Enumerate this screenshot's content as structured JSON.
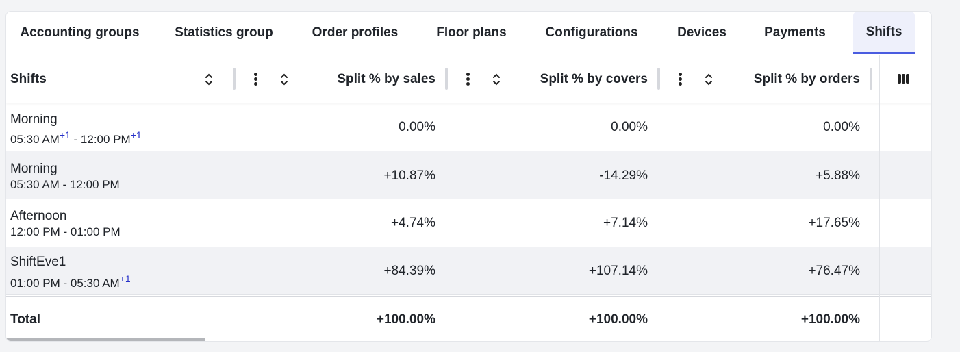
{
  "tabs": [
    {
      "label": "Accounting groups"
    },
    {
      "label": "Statistics group"
    },
    {
      "label": "Order profiles"
    },
    {
      "label": "Floor plans"
    },
    {
      "label": "Configurations"
    },
    {
      "label": "Devices"
    },
    {
      "label": "Payments"
    },
    {
      "label": "Shifts",
      "active": true
    }
  ],
  "table": {
    "headers": {
      "shifts": "Shifts",
      "sales": "Split % by sales",
      "covers": "Split % by covers",
      "orders": "Split % by orders"
    },
    "plus_marker": "+1",
    "rows": [
      {
        "name": "Morning",
        "start": "05:30 AM",
        "end": "12:00 PM",
        "start_plus": "+1",
        "end_plus": "+1",
        "sales": "0.00%",
        "covers": "0.00%",
        "orders": "0.00%"
      },
      {
        "name": "Morning",
        "time": "05:30 AM - 12:00 PM",
        "sales": "+10.87%",
        "covers": "-14.29%",
        "orders": "+5.88%"
      },
      {
        "name": "Afternoon",
        "time": "12:00 PM - 01:00 PM",
        "sales": "+4.74%",
        "covers": "+7.14%",
        "orders": "+17.65%"
      },
      {
        "name": "ShiftEve1",
        "time": "01:00 PM - 05:30 AM",
        "time_plus": "+1",
        "sales": "+84.39%",
        "covers": "+107.14%",
        "orders": "+76.47%"
      }
    ],
    "total": {
      "label": "Total",
      "sales": "+100.00%",
      "covers": "+100.00%",
      "orders": "+100.00%"
    }
  },
  "colors": {
    "accent": "#4a5ce0",
    "plus_marker": "#2631c9",
    "alt_row": "#f1f2f5"
  },
  "icons": [
    "kebab-menu-icon",
    "sort-icon",
    "columns-icon"
  ]
}
